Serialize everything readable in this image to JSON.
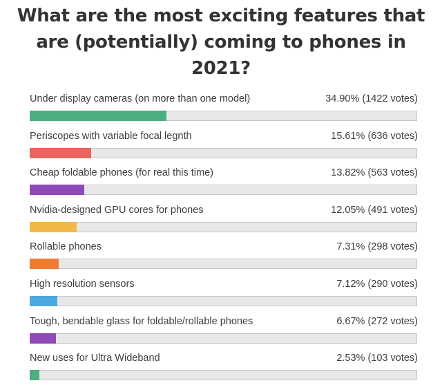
{
  "title": "What are the most exciting features that are (potentially) coming to phones in 2021?",
  "chart_data": {
    "type": "bar",
    "orientation": "horizontal",
    "title": "What are the most exciting features that are (potentially) coming to phones in 2021?",
    "xlim": [
      0,
      100
    ],
    "unit": "percent",
    "options": [
      {
        "label": "Under display cameras (on more than one model)",
        "percent": 34.9,
        "votes": 1422,
        "result_text": "34.90% (1422 votes)",
        "color": "#4cae80"
      },
      {
        "label": "Periscopes with variable focal legnth",
        "percent": 15.61,
        "votes": 636,
        "result_text": "15.61% (636 votes)",
        "color": "#e9655e"
      },
      {
        "label": "Cheap foldable phones (for real this time)",
        "percent": 13.82,
        "votes": 563,
        "result_text": "13.82% (563 votes)",
        "color": "#8f49b8"
      },
      {
        "label": "Nvidia-designed GPU cores for phones",
        "percent": 12.05,
        "votes": 491,
        "result_text": "12.05% (491 votes)",
        "color": "#f3b84a"
      },
      {
        "label": "Rollable phones",
        "percent": 7.31,
        "votes": 298,
        "result_text": "7.31% (298 votes)",
        "color": "#ee7d32"
      },
      {
        "label": "High resolution sensors",
        "percent": 7.12,
        "votes": 290,
        "result_text": "7.12% (290 votes)",
        "color": "#4ca9e0"
      },
      {
        "label": "Tough, bendable glass for foldable/rollable phones",
        "percent": 6.67,
        "votes": 272,
        "result_text": "6.67% (272 votes)",
        "color": "#8f49b8"
      },
      {
        "label": "New uses for Ultra Wideband",
        "percent": 2.53,
        "votes": 103,
        "result_text": "2.53% (103 votes)",
        "color": "#4cae80"
      }
    ]
  }
}
